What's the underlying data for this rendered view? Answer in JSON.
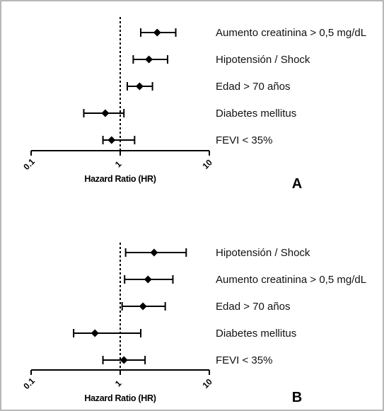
{
  "chart_data": [
    {
      "type": "forest",
      "panel_label": "A",
      "xlabel": "Hazard Ratio (HR)",
      "xscale": "log",
      "xlim": [
        0.1,
        10
      ],
      "xticks": [
        "0.1",
        "1",
        "10"
      ],
      "reference_line": 1,
      "rows": [
        {
          "label": "Aumento creatinina > 0,5 mg/dL",
          "hr": 2.6,
          "ci_low": 1.7,
          "ci_high": 4.2
        },
        {
          "label": "Hipotensión / Shock",
          "hr": 2.1,
          "ci_low": 1.4,
          "ci_high": 3.4
        },
        {
          "label": "Edad > 70 años",
          "hr": 1.65,
          "ci_low": 1.2,
          "ci_high": 2.3
        },
        {
          "label": "Diabetes mellitus",
          "hr": 0.68,
          "ci_low": 0.39,
          "ci_high": 1.1
        },
        {
          "label": "FEVI < 35%",
          "hr": 0.8,
          "ci_low": 0.64,
          "ci_high": 1.45
        }
      ]
    },
    {
      "type": "forest",
      "panel_label": "B",
      "xlabel": "Hazard Ratio (HR)",
      "xscale": "log",
      "xlim": [
        0.1,
        10
      ],
      "xticks": [
        "0.1",
        "1",
        "10"
      ],
      "reference_line": 1,
      "rows": [
        {
          "label": "Hipotensión / Shock",
          "hr": 2.4,
          "ci_low": 1.15,
          "ci_high": 5.5
        },
        {
          "label": "Aumento creatinina > 0,5 mg/dL",
          "hr": 2.05,
          "ci_low": 1.12,
          "ci_high": 3.9
        },
        {
          "label": "Edad > 70 años",
          "hr": 1.8,
          "ci_low": 1.05,
          "ci_high": 3.2
        },
        {
          "label": "Diabetes mellitus",
          "hr": 0.52,
          "ci_low": 0.3,
          "ci_high": 1.7
        },
        {
          "label": "FEVI < 35%",
          "hr": 1.1,
          "ci_low": 0.64,
          "ci_high": 1.9
        }
      ]
    }
  ]
}
